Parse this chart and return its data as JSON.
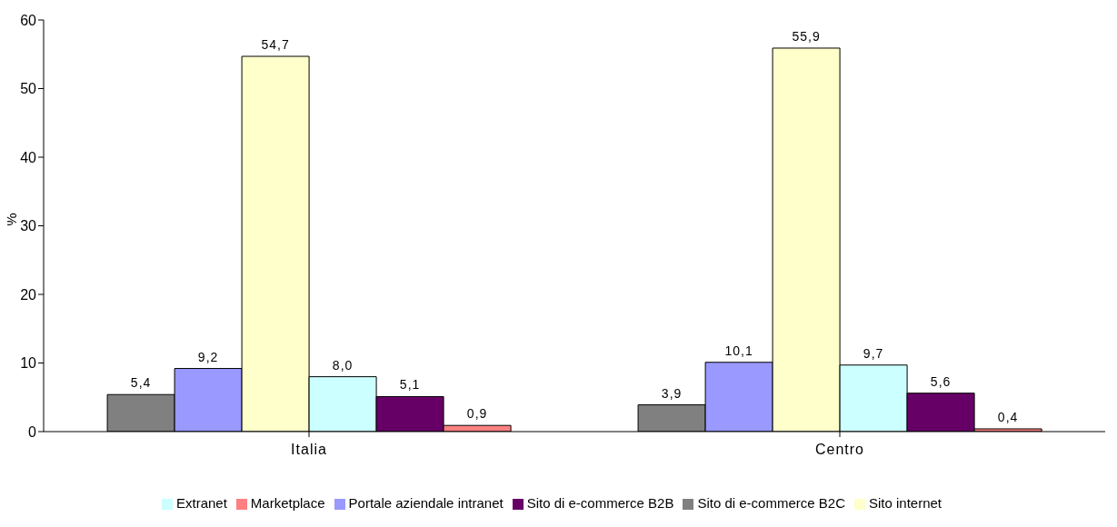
{
  "chart_data": {
    "type": "bar",
    "ylabel": "%",
    "categories": [
      "Italia",
      "Centro"
    ],
    "series": [
      {
        "name": "Sito di e-commerce B2C",
        "color": "#808080",
        "values": [
          5.4,
          3.9
        ],
        "value_labels": [
          "5,4",
          "3,9"
        ]
      },
      {
        "name": "Portale aziendale intranet",
        "color": "#9999ff",
        "values": [
          9.2,
          10.1
        ],
        "value_labels": [
          "9,2",
          "10,1"
        ]
      },
      {
        "name": "Sito internet",
        "color": "#ffffcc",
        "values": [
          54.7,
          55.9
        ],
        "value_labels": [
          "54,7",
          "55,9"
        ]
      },
      {
        "name": "Extranet",
        "color": "#ccffff",
        "values": [
          8.0,
          9.7
        ],
        "value_labels": [
          "8,0",
          "9,7"
        ]
      },
      {
        "name": "Sito di e-commerce B2B",
        "color": "#660066",
        "values": [
          5.1,
          5.6
        ],
        "value_labels": [
          "5,1",
          "5,6"
        ]
      },
      {
        "name": "Marketplace",
        "color": "#ff8080",
        "values": [
          0.9,
          0.4
        ],
        "value_labels": [
          "0,9",
          "0,4"
        ]
      }
    ],
    "ylim": [
      0,
      60
    ],
    "yticks": [
      0,
      10,
      20,
      30,
      40,
      50,
      60
    ],
    "grid": false,
    "legend": "bottom"
  }
}
